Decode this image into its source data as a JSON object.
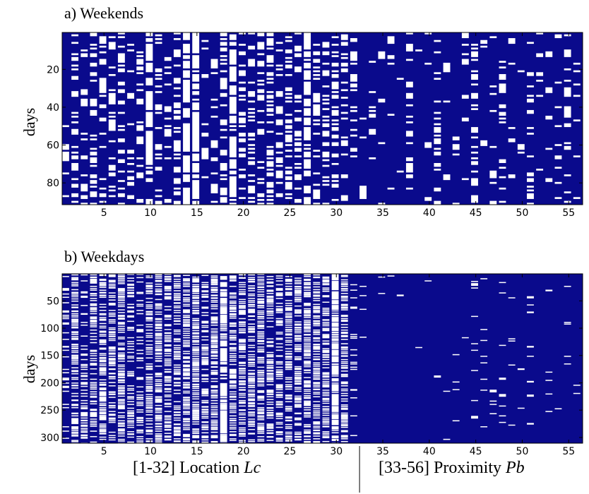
{
  "chart_data": [
    {
      "type": "heatmap",
      "title": "a) Weekends",
      "ylabel": "days",
      "xlim": [
        0.5,
        56.5
      ],
      "ylim": [
        1,
        91
      ],
      "x_ticks": [
        5,
        10,
        15,
        20,
        25,
        30,
        35,
        40,
        45,
        50,
        55
      ],
      "y_ticks": [
        20,
        40,
        60,
        80
      ],
      "colors": {
        "on": "#ffffff",
        "off": "#0a0a8c"
      },
      "column_occupancy": [
        0.1,
        0.35,
        0.2,
        0.45,
        0.15,
        0.25,
        0.4,
        0.2,
        0.15,
        0.55,
        0.3,
        0.15,
        0.35,
        0.6,
        0.95,
        0.1,
        0.2,
        0.4,
        0.65,
        0.3,
        0.4,
        0.3,
        0.45,
        0.35,
        0.4,
        0.3,
        0.6,
        0.35,
        0.4,
        0.45,
        0.3,
        0.15,
        0.04,
        0.05,
        0.1,
        0.05,
        0.04,
        0.2,
        0.05,
        0.05,
        0.2,
        0.05,
        0.03,
        0.05,
        0.25,
        0.05,
        0.05,
        0.2,
        0.04,
        0.05,
        0.2,
        0.05,
        0.04,
        0.1,
        0.15,
        0.05
      ]
    },
    {
      "type": "heatmap",
      "title": "b) Weekdays",
      "ylabel": "days",
      "xlim": [
        0.5,
        56.5
      ],
      "ylim": [
        1,
        310
      ],
      "x_ticks": [
        5,
        10,
        15,
        20,
        25,
        30,
        35,
        40,
        45,
        50,
        55
      ],
      "y_ticks": [
        50,
        100,
        150,
        200,
        250,
        300
      ],
      "colors": {
        "on": "#ffffff",
        "off": "#0a0a8c"
      },
      "column_occupancy": [
        0.1,
        0.35,
        0.2,
        0.3,
        0.35,
        0.25,
        0.4,
        0.3,
        0.2,
        0.35,
        0.4,
        0.3,
        0.3,
        0.45,
        0.5,
        0.3,
        0.45,
        0.55,
        0.35,
        0.3,
        0.35,
        0.45,
        0.3,
        0.3,
        0.4,
        0.35,
        0.45,
        0.35,
        0.35,
        0.6,
        0.4,
        0.08,
        0.01,
        0.005,
        0.005,
        0.005,
        0.005,
        0.005,
        0.005,
        0.005,
        0.005,
        0.005,
        0.005,
        0.01,
        0.02,
        0.02,
        0.01,
        0.02,
        0.02,
        0.005,
        0.01,
        0.005,
        0.01,
        0.01,
        0.02,
        0.005
      ]
    }
  ],
  "xlabels": {
    "location": "[1-32] Location ",
    "location_var": "Lc",
    "proximity": "[33-56] Proximity ",
    "proximity_var": "Pb"
  }
}
